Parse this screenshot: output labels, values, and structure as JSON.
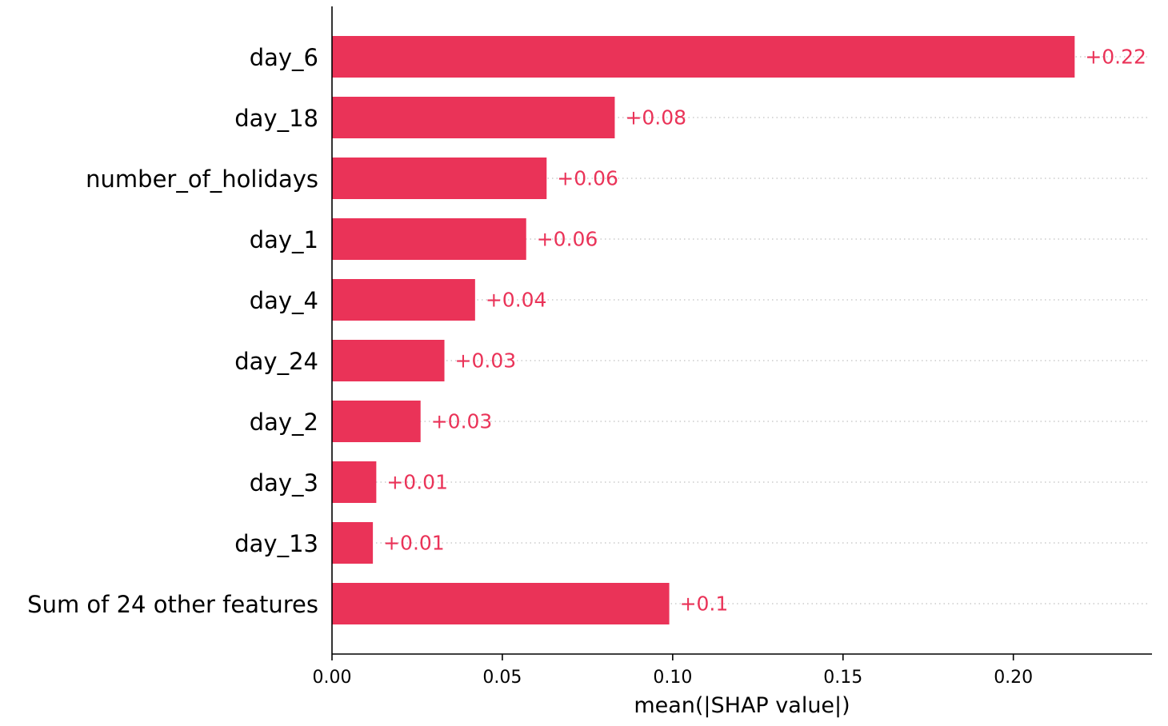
{
  "chart_data": {
    "type": "bar",
    "orientation": "horizontal",
    "categories": [
      "day_6",
      "day_18",
      "number_of_holidays",
      "day_1",
      "day_4",
      "day_24",
      "day_2",
      "day_3",
      "day_13",
      "Sum of 24 other features"
    ],
    "values": [
      0.218,
      0.083,
      0.063,
      0.057,
      0.042,
      0.033,
      0.026,
      0.013,
      0.012,
      0.099
    ],
    "data_labels": [
      "+0.22",
      "+0.08",
      "+0.06",
      "+0.06",
      "+0.04",
      "+0.03",
      "+0.03",
      "+0.01",
      "+0.01",
      "+0.1"
    ],
    "title": "",
    "xlabel": "mean(|SHAP value|)",
    "ylabel": "",
    "xlim": [
      0,
      0.2407
    ],
    "xticks": [
      0.0,
      0.05,
      0.1,
      0.15,
      0.2
    ],
    "xtick_labels": [
      "0.00",
      "0.05",
      "0.10",
      "0.15",
      "0.20"
    ],
    "grid": "dotted horizontal row guides",
    "legend": "none",
    "colors": {
      "bar": "#EA3358",
      "label": "#EA3358",
      "guide": "#CCCCCC",
      "axis": "#000000"
    }
  }
}
